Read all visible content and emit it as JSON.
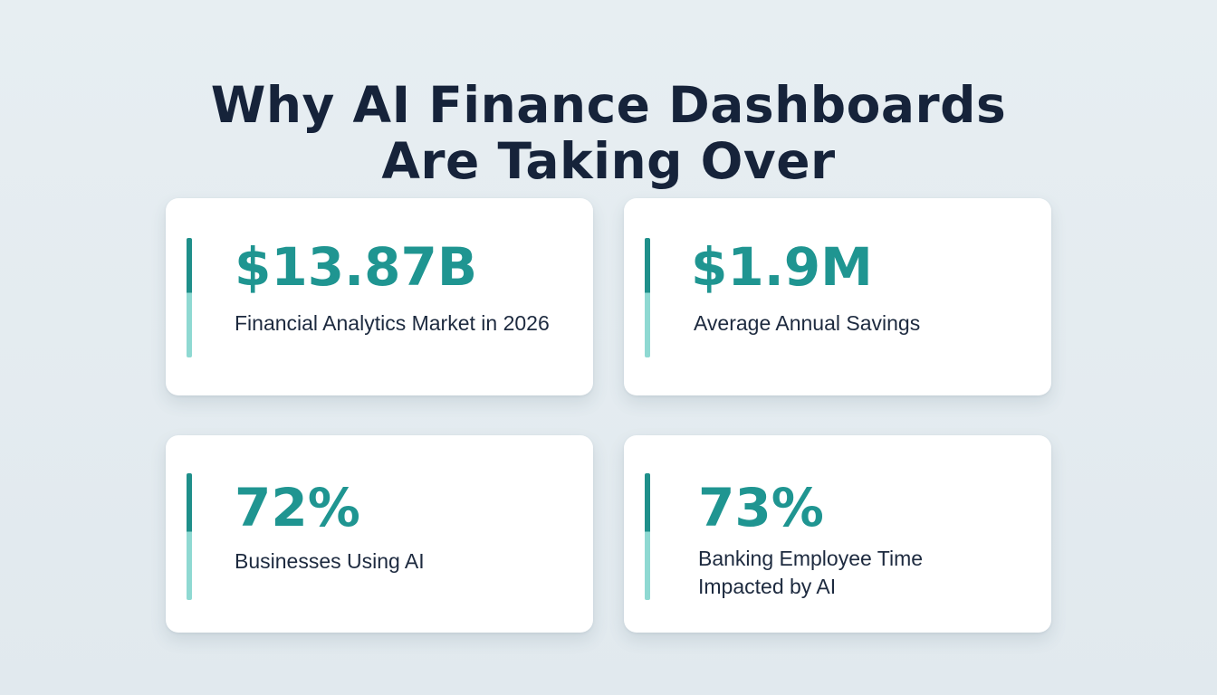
{
  "title": {
    "line1": "Why AI Finance Dashboards",
    "line2": "Are Taking Over"
  },
  "stats": [
    {
      "value": "$13.87B",
      "label": "Financial Analytics Market in 2026"
    },
    {
      "value": "$1.9M",
      "label": "Average Annual Savings"
    },
    {
      "value": "72%",
      "label": "Businesses Using AI"
    },
    {
      "value": "73%",
      "label_line1": "Banking Employee Time",
      "label_line2": "Impacted by AI"
    }
  ],
  "colors": {
    "title": "#16233a",
    "value": "#1f9591",
    "accent_dark": "#1f8f8a",
    "accent_light": "#8fd9d2",
    "card_background": "#ffffff",
    "page_background": "#e4ecf0"
  }
}
